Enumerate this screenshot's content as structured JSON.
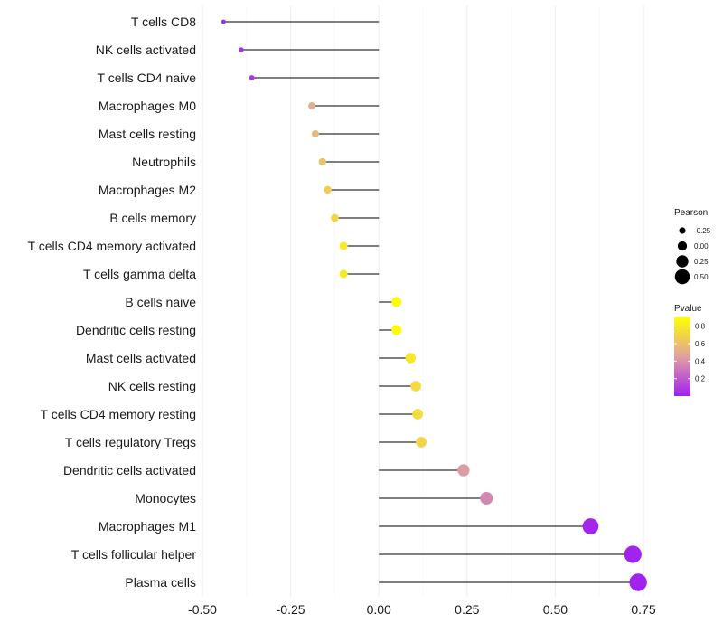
{
  "chart_data": {
    "type": "lollipop",
    "title": "",
    "xlabel": "",
    "ylabel": "",
    "xlim": [
      -0.5,
      0.75
    ],
    "x_ticks": [
      "-0.50",
      "-0.25",
      "0.00",
      "0.25",
      "0.50",
      "0.75"
    ],
    "x_tick_values": [
      -0.5,
      -0.25,
      0.0,
      0.25,
      0.5,
      0.75
    ],
    "grid": true,
    "categories": [
      "T cells CD8",
      "NK cells activated",
      "T cells CD4 naive",
      "Macrophages M0",
      "Mast cells resting",
      "Neutrophils",
      "Macrophages M2",
      "B cells memory",
      "T cells CD4 memory activated",
      "T cells gamma delta",
      "B cells naive",
      "Dendritic cells resting",
      "Mast cells activated",
      "NK cells resting",
      "T cells CD4 memory resting",
      "T cells regulatory  Tregs",
      "Dendritic cells activated",
      "Monocytes",
      "Macrophages M1",
      "T cells follicular helper",
      "Plasma cells"
    ],
    "pearson": [
      -0.44,
      -0.39,
      -0.36,
      -0.19,
      -0.18,
      -0.16,
      -0.145,
      -0.125,
      -0.1,
      -0.1,
      0.05,
      0.05,
      0.09,
      0.105,
      0.11,
      0.12,
      0.24,
      0.305,
      0.6,
      0.72,
      0.735
    ],
    "pvalue": [
      0.03,
      0.06,
      0.08,
      0.5,
      0.55,
      0.6,
      0.65,
      0.7,
      0.8,
      0.8,
      0.88,
      0.88,
      0.78,
      0.72,
      0.72,
      0.68,
      0.42,
      0.35,
      0.02,
      0.01,
      0.01
    ],
    "legend_size": {
      "title": "Pearson",
      "labels": [
        "-0.25",
        "0.00",
        "0.25",
        "0.50"
      ],
      "values": [
        -0.25,
        0.0,
        0.25,
        0.5
      ]
    },
    "legend_color": {
      "title": "Pvalue",
      "labels": [
        "0.8",
        "0.6",
        "0.4",
        "0.2"
      ],
      "values": [
        0.8,
        0.6,
        0.4,
        0.2
      ],
      "range": [
        0.0,
        0.9
      ],
      "low_color": "#a020f0",
      "mid_color": "#e0a5a0",
      "high_color": "#ffff00"
    },
    "line_color": "#333333",
    "grid_color": "#ebebeb",
    "legend_placement": "right"
  }
}
